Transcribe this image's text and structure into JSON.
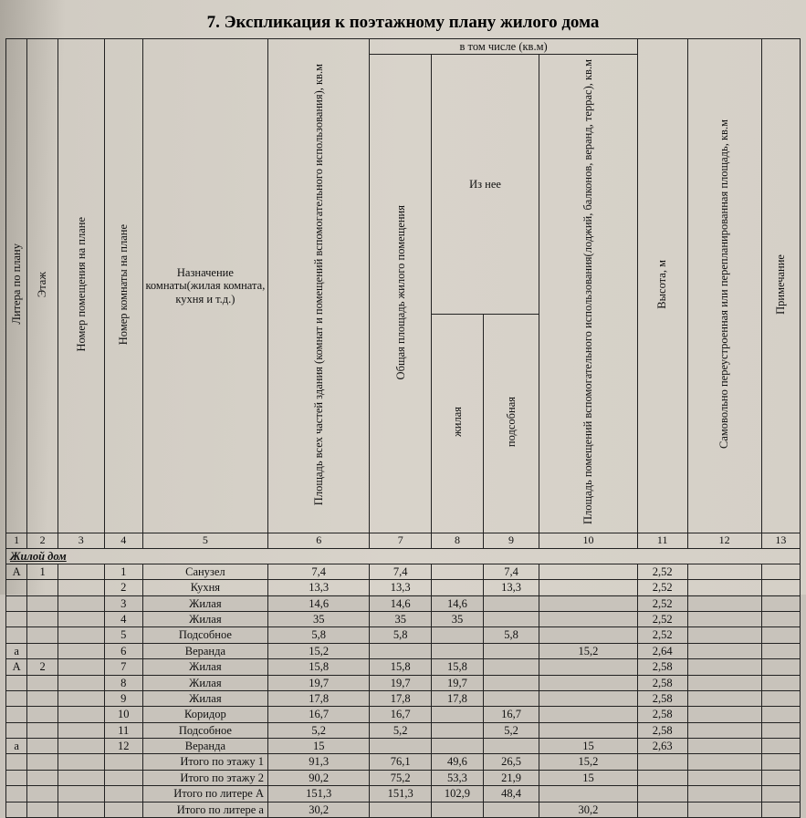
{
  "title": "7. Экспликация к поэтажному плану жилого дома",
  "headers": {
    "c1": "Литера по плану",
    "c2": "Этаж",
    "c3": "Номер помещения на плане",
    "c4": "Номер комнаты на плане",
    "c5": "Назначение комнаты(жилая комната, кухня и т.д.)",
    "c6": "Площадь всех частей здания (комнат и помещений вспомогательного использования), кв.м",
    "group_incl": "в том числе (кв.м)",
    "c7": "Общая площадь жилого помещения",
    "group_from": "Из нее",
    "c8": "жилая",
    "c9": "подсобная",
    "c10": "Площадь помещений вспомогательного использования(лоджий, балконов, веранд, террас), кв.м",
    "c11": "Высота, м",
    "c12": "Самовольно переустроенная или перепланированная площадь, кв.м",
    "c13": "Примечание"
  },
  "colnums": [
    "1",
    "2",
    "3",
    "4",
    "5",
    "6",
    "7",
    "8",
    "9",
    "10",
    "11",
    "12",
    "13"
  ],
  "section": "Жилой дом",
  "rows": [
    {
      "c1": "А",
      "c2": "1",
      "c3": "",
      "c4": "1",
      "c5": "Санузел",
      "c6": "7,4",
      "c7": "7,4",
      "c8": "",
      "c9": "7,4",
      "c10": "",
      "c11": "2,52",
      "c12": "",
      "c13": ""
    },
    {
      "c1": "",
      "c2": "",
      "c3": "",
      "c4": "2",
      "c5": "Кухня",
      "c6": "13,3",
      "c7": "13,3",
      "c8": "",
      "c9": "13,3",
      "c10": "",
      "c11": "2,52",
      "c12": "",
      "c13": ""
    },
    {
      "c1": "",
      "c2": "",
      "c3": "",
      "c4": "3",
      "c5": "Жилая",
      "c6": "14,6",
      "c7": "14,6",
      "c8": "14,6",
      "c9": "",
      "c10": "",
      "c11": "2,52",
      "c12": "",
      "c13": ""
    },
    {
      "c1": "",
      "c2": "",
      "c3": "",
      "c4": "4",
      "c5": "Жилая",
      "c6": "35",
      "c7": "35",
      "c8": "35",
      "c9": "",
      "c10": "",
      "c11": "2,52",
      "c12": "",
      "c13": ""
    },
    {
      "c1": "",
      "c2": "",
      "c3": "",
      "c4": "5",
      "c5": "Подсобное",
      "c6": "5,8",
      "c7": "5,8",
      "c8": "",
      "c9": "5,8",
      "c10": "",
      "c11": "2,52",
      "c12": "",
      "c13": ""
    },
    {
      "c1": "а",
      "c2": "",
      "c3": "",
      "c4": "6",
      "c5": "Веранда",
      "c6": "15,2",
      "c7": "",
      "c8": "",
      "c9": "",
      "c10": "15,2",
      "c11": "2,64",
      "c12": "",
      "c13": ""
    },
    {
      "c1": "А",
      "c2": "2",
      "c3": "",
      "c4": "7",
      "c5": "Жилая",
      "c6": "15,8",
      "c7": "15,8",
      "c8": "15,8",
      "c9": "",
      "c10": "",
      "c11": "2,58",
      "c12": "",
      "c13": ""
    },
    {
      "c1": "",
      "c2": "",
      "c3": "",
      "c4": "8",
      "c5": "Жилая",
      "c6": "19,7",
      "c7": "19,7",
      "c8": "19,7",
      "c9": "",
      "c10": "",
      "c11": "2,58",
      "c12": "",
      "c13": ""
    },
    {
      "c1": "",
      "c2": "",
      "c3": "",
      "c4": "9",
      "c5": "Жилая",
      "c6": "17,8",
      "c7": "17,8",
      "c8": "17,8",
      "c9": "",
      "c10": "",
      "c11": "2,58",
      "c12": "",
      "c13": ""
    },
    {
      "c1": "",
      "c2": "",
      "c3": "",
      "c4": "10",
      "c5": "Коридор",
      "c6": "16,7",
      "c7": "16,7",
      "c8": "",
      "c9": "16,7",
      "c10": "",
      "c11": "2,58",
      "c12": "",
      "c13": ""
    },
    {
      "c1": "",
      "c2": "",
      "c3": "",
      "c4": "11",
      "c5": "Подсобное",
      "c6": "5,2",
      "c7": "5,2",
      "c8": "",
      "c9": "5,2",
      "c10": "",
      "c11": "2,58",
      "c12": "",
      "c13": ""
    },
    {
      "c1": "а",
      "c2": "",
      "c3": "",
      "c4": "12",
      "c5": "Веранда",
      "c6": "15",
      "c7": "",
      "c8": "",
      "c9": "",
      "c10": "15",
      "c11": "2,63",
      "c12": "",
      "c13": ""
    },
    {
      "c1": "",
      "c2": "",
      "c3": "",
      "c4": "",
      "c5": "Итого по этажу 1",
      "c6": "91,3",
      "c7": "76,1",
      "c8": "49,6",
      "c9": "26,5",
      "c10": "15,2",
      "c11": "",
      "c12": "",
      "c13": "",
      "sum": true
    },
    {
      "c1": "",
      "c2": "",
      "c3": "",
      "c4": "",
      "c5": "Итого по этажу 2",
      "c6": "90,2",
      "c7": "75,2",
      "c8": "53,3",
      "c9": "21,9",
      "c10": "15",
      "c11": "",
      "c12": "",
      "c13": "",
      "sum": true
    },
    {
      "c1": "",
      "c2": "",
      "c3": "",
      "c4": "",
      "c5": "Итого по литере А",
      "c6": "151,3",
      "c7": "151,3",
      "c8": "102,9",
      "c9": "48,4",
      "c10": "",
      "c11": "",
      "c12": "",
      "c13": "",
      "sum": true
    },
    {
      "c1": "",
      "c2": "",
      "c3": "",
      "c4": "",
      "c5": "Итого по литере а",
      "c6": "30,2",
      "c7": "",
      "c8": "",
      "c9": "",
      "c10": "30,2",
      "c11": "",
      "c12": "",
      "c13": "",
      "sum": true
    }
  ]
}
